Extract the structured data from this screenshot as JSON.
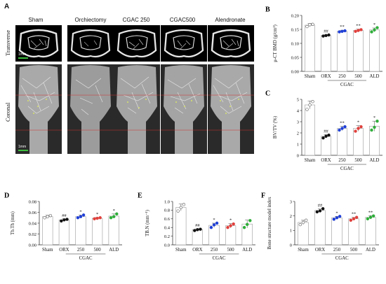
{
  "panel_a": {
    "letter": "A",
    "groups": [
      "Sham",
      "Orchiectomy",
      "CGAC 250",
      "CGAC500",
      "Alendronate"
    ],
    "row_labels": [
      "Transverse",
      "Coronal"
    ],
    "scale_bar_labels": [
      "1mm",
      "1mm"
    ]
  },
  "chart_data": [
    {
      "panel": "B",
      "type": "bar",
      "categories": [
        "Sham",
        "ORX",
        "250",
        "500",
        "ALD"
      ],
      "group_label": "CGAC",
      "ylabel": "μ-CT BMD (g/cm³)",
      "ylim": [
        0,
        0.2
      ],
      "yticks": [
        0.0,
        0.05,
        0.1,
        0.15,
        0.2
      ],
      "ytick_labels": [
        "0.00",
        "0.05",
        "0.10",
        "0.15",
        "0.20"
      ],
      "values": [
        0.165,
        0.128,
        0.143,
        0.146,
        0.148
      ],
      "errors": [
        0.006,
        0.003,
        0.004,
        0.005,
        0.007
      ],
      "points": [
        [
          0.16,
          0.167,
          0.168
        ],
        [
          0.126,
          0.128,
          0.13
        ],
        [
          0.141,
          0.143,
          0.145
        ],
        [
          0.143,
          0.146,
          0.149
        ],
        [
          0.141,
          0.148,
          0.156
        ]
      ],
      "significance": [
        "",
        "##",
        "**",
        "**",
        "*"
      ],
      "colors": [
        "#ffffff",
        "#111111",
        "#1f3fd6",
        "#e0403c",
        "#2fae3a"
      ]
    },
    {
      "panel": "C",
      "type": "bar",
      "categories": [
        "Sham",
        "ORX",
        "250",
        "500",
        "ALD"
      ],
      "group_label": "CGAC",
      "ylabel": "BV/TV (%)",
      "ylim": [
        0,
        5
      ],
      "yticks": [
        0,
        1,
        2,
        3,
        4,
        5
      ],
      "ytick_labels": [
        "0",
        "1",
        "2",
        "3",
        "4",
        "5"
      ],
      "values": [
        4.5,
        1.7,
        2.4,
        2.4,
        2.6
      ],
      "errors": [
        0.35,
        0.15,
        0.2,
        0.25,
        0.45
      ],
      "points": [
        [
          4.1,
          4.5,
          4.8
        ],
        [
          1.55,
          1.7,
          1.8
        ],
        [
          2.25,
          2.4,
          2.55
        ],
        [
          2.15,
          2.4,
          2.55
        ],
        [
          2.25,
          2.5,
          3.05
        ]
      ],
      "significance": [
        "",
        "##",
        "**",
        "*",
        "*"
      ],
      "colors": [
        "#ffffff",
        "#111111",
        "#1f3fd6",
        "#e0403c",
        "#2fae3a"
      ]
    },
    {
      "panel": "D",
      "type": "bar",
      "categories": [
        "Sham",
        "ORX",
        "250",
        "500",
        "ALD"
      ],
      "group_label": "CGAC",
      "ylabel": "Tb.Th (mm)",
      "ylim": [
        0,
        0.08
      ],
      "yticks": [
        0.0,
        0.02,
        0.04,
        0.06,
        0.08
      ],
      "ytick_labels": [
        "0.00",
        "0.02",
        "0.04",
        "0.06",
        "0.08"
      ],
      "values": [
        0.052,
        0.046,
        0.052,
        0.049,
        0.053
      ],
      "errors": [
        0.0025,
        0.002,
        0.003,
        0.0015,
        0.004
      ],
      "points": [
        [
          0.05,
          0.052,
          0.054
        ],
        [
          0.044,
          0.046,
          0.047
        ],
        [
          0.05,
          0.052,
          0.055
        ],
        [
          0.048,
          0.049,
          0.05
        ],
        [
          0.05,
          0.052,
          0.057
        ]
      ],
      "significance": [
        "",
        "##",
        "*",
        "*",
        "*"
      ],
      "colors": [
        "#ffffff",
        "#111111",
        "#1f3fd6",
        "#e0403c",
        "#2fae3a"
      ]
    },
    {
      "panel": "E",
      "type": "bar",
      "categories": [
        "Sham",
        "ORX",
        "250",
        "500",
        "ALD"
      ],
      "group_label": "CGAC",
      "ylabel": "TB.N (mm⁻¹)",
      "ylim": [
        0,
        1.0
      ],
      "yticks": [
        0.0,
        0.2,
        0.4,
        0.6,
        0.8,
        1.0
      ],
      "ytick_labels": [
        "0.0",
        "0.2",
        "0.4",
        "0.6",
        "0.8",
        "1.0"
      ],
      "values": [
        0.86,
        0.35,
        0.45,
        0.44,
        0.48
      ],
      "errors": [
        0.08,
        0.02,
        0.05,
        0.05,
        0.09
      ],
      "points": [
        [
          0.78,
          0.86,
          0.93
        ],
        [
          0.33,
          0.35,
          0.36
        ],
        [
          0.4,
          0.46,
          0.5
        ],
        [
          0.4,
          0.44,
          0.48
        ],
        [
          0.4,
          0.47,
          0.56
        ]
      ],
      "significance": [
        "",
        "##",
        "*",
        "*",
        ""
      ],
      "colors": [
        "#ffffff",
        "#111111",
        "#1f3fd6",
        "#e0403c",
        "#2fae3a"
      ]
    },
    {
      "panel": "F",
      "type": "bar",
      "categories": [
        "Sham",
        "ORX",
        "250",
        "500",
        "ALD"
      ],
      "group_label": "CGAC",
      "ylabel": "Bone structure model index",
      "ylim": [
        0,
        3
      ],
      "yticks": [
        0,
        1,
        2,
        3
      ],
      "ytick_labels": [
        "0",
        "1",
        "2",
        "3"
      ],
      "values": [
        1.55,
        2.38,
        1.87,
        1.8,
        1.9
      ],
      "errors": [
        0.15,
        0.1,
        0.1,
        0.1,
        0.12
      ],
      "points": [
        [
          1.4,
          1.55,
          1.7
        ],
        [
          2.28,
          2.35,
          2.5
        ],
        [
          1.77,
          1.87,
          1.97
        ],
        [
          1.7,
          1.8,
          1.9
        ],
        [
          1.8,
          1.9,
          2.0
        ]
      ],
      "significance": [
        "",
        "##",
        "*",
        "**",
        "**"
      ],
      "colors": [
        "#ffffff",
        "#111111",
        "#1f3fd6",
        "#e0403c",
        "#2fae3a"
      ]
    }
  ]
}
